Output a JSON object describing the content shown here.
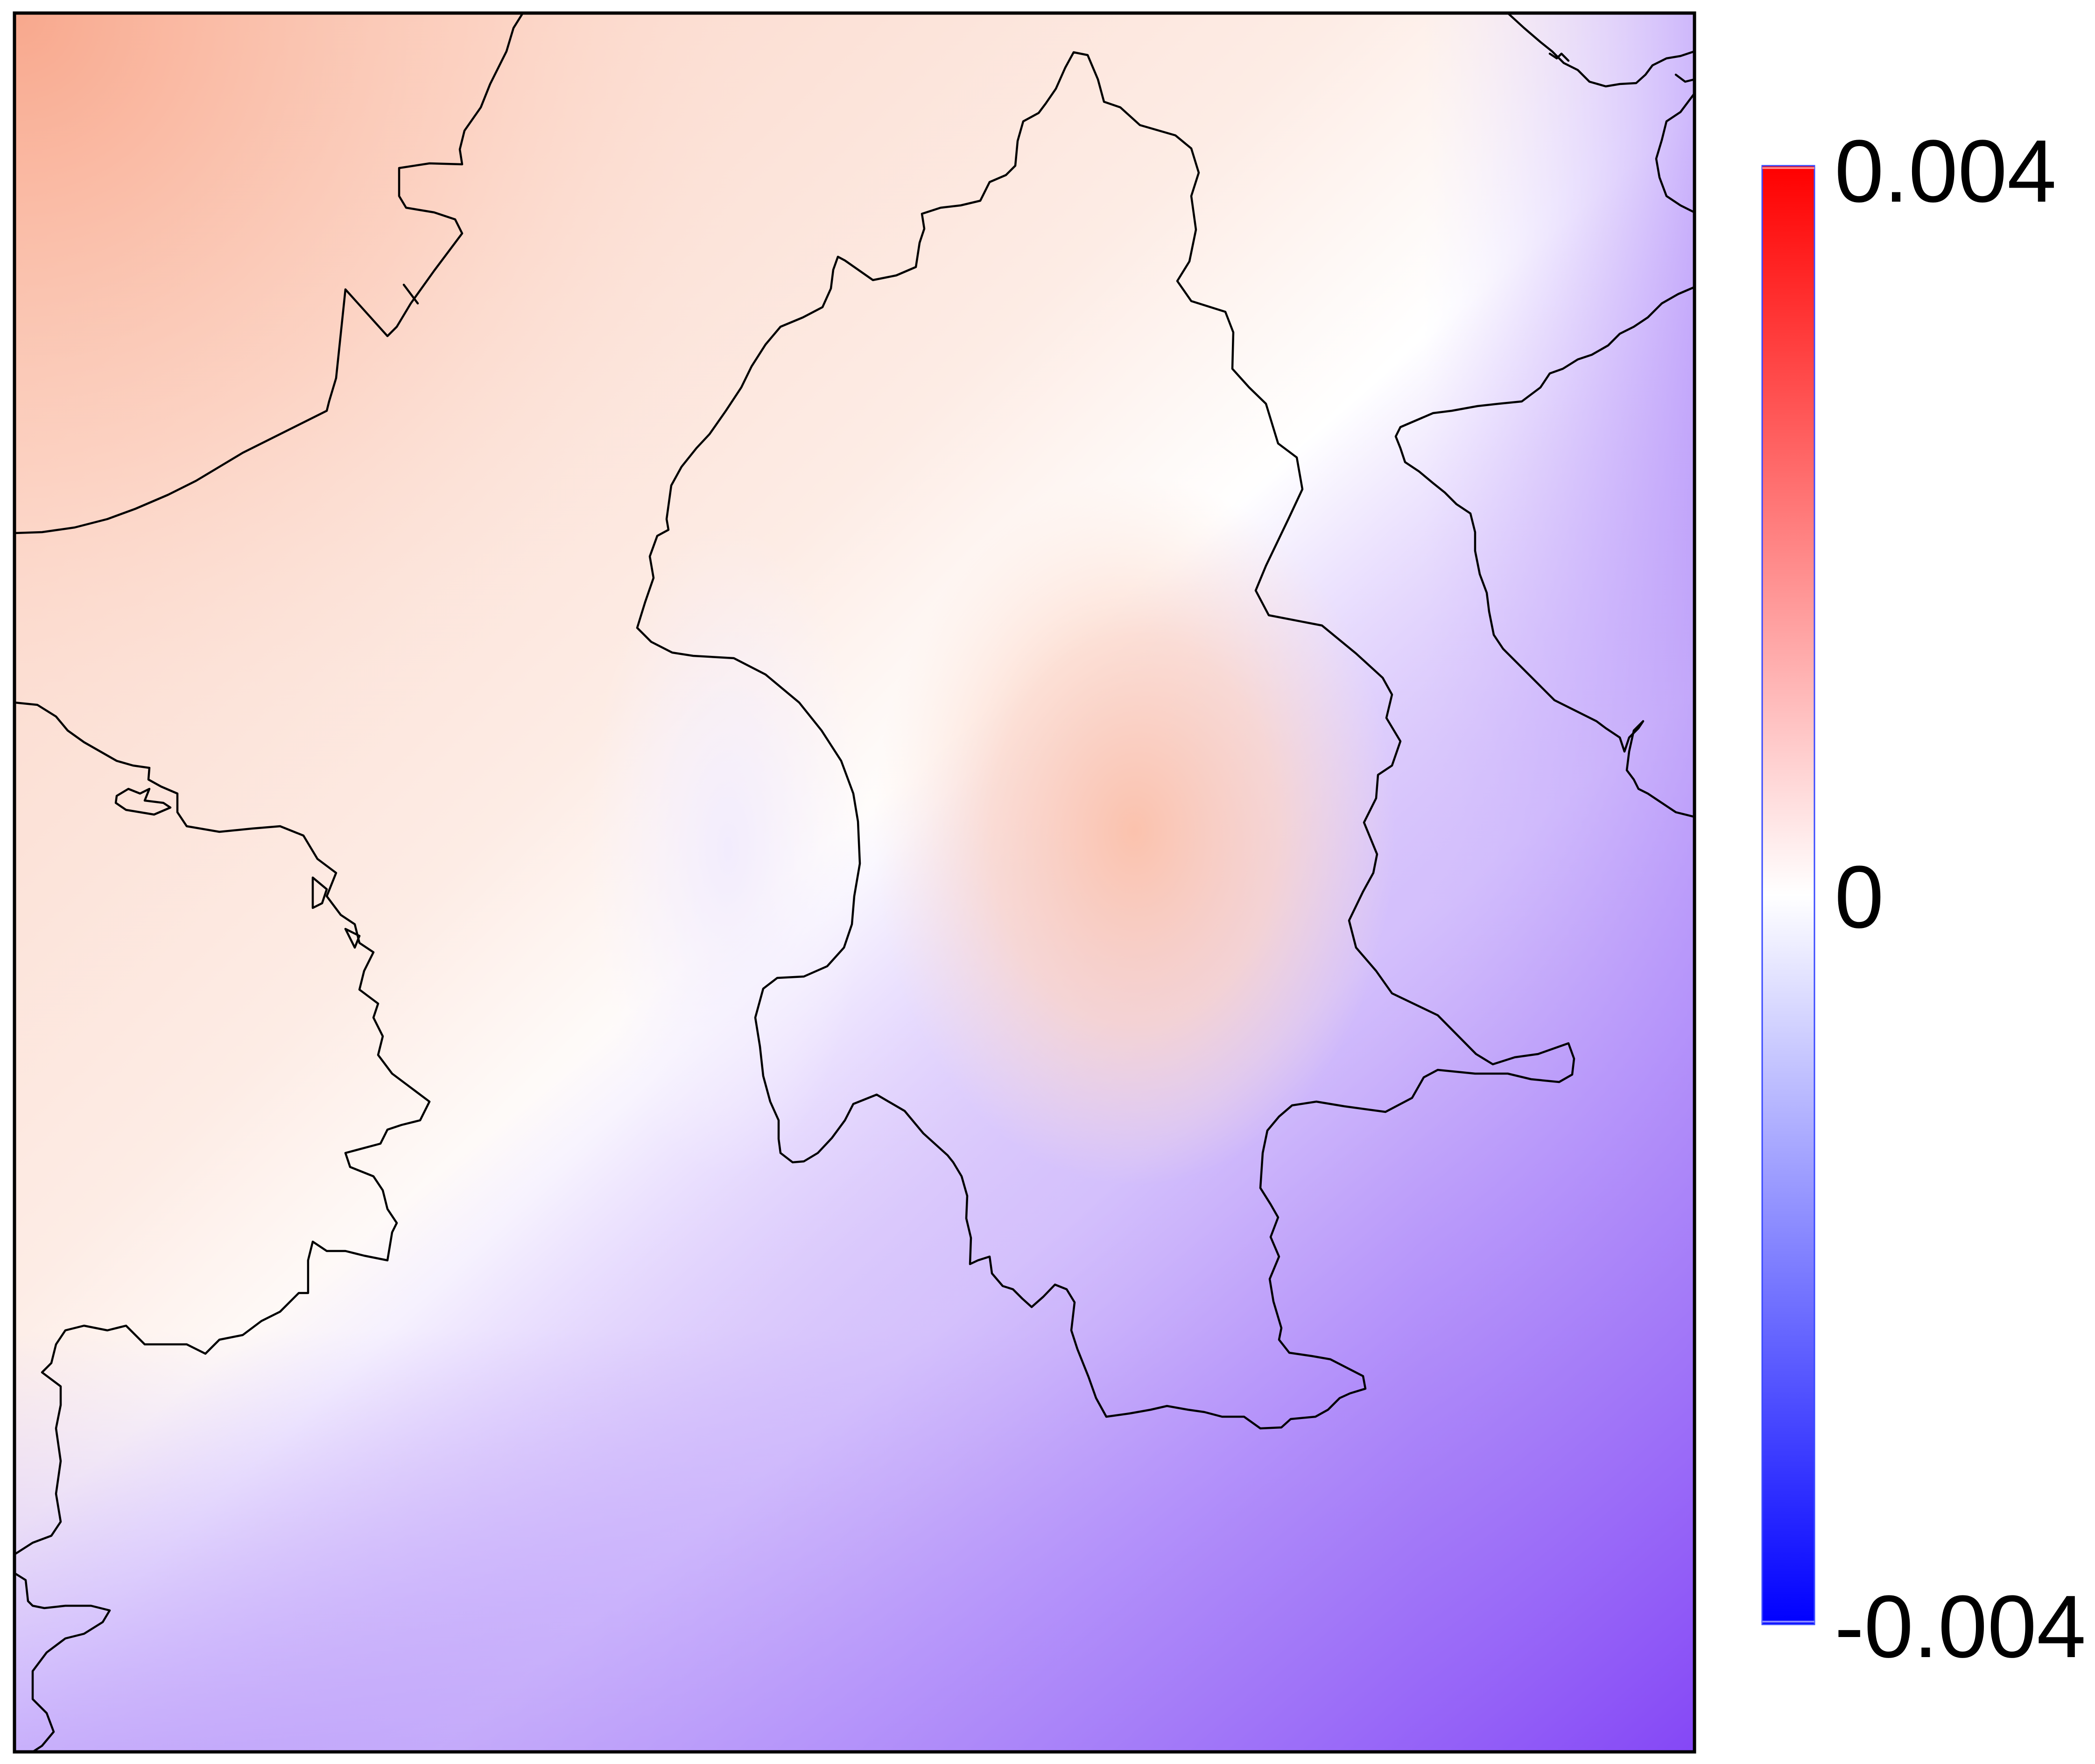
{
  "map": {
    "type": "heatmap",
    "colormap": {
      "low": "#0000ff",
      "mid": "#ffffff",
      "high": "#ff0000"
    },
    "range": [
      -0.004,
      0.004
    ]
  },
  "colorbar": {
    "ticks": [
      {
        "value": 0.004,
        "label": "0.004"
      },
      {
        "value": 0,
        "label": "0"
      },
      {
        "value": -0.004,
        "label": "-0.004"
      }
    ]
  },
  "colors": {
    "frame": "#000000",
    "boundary": "#000000",
    "background": "#ffffff"
  }
}
